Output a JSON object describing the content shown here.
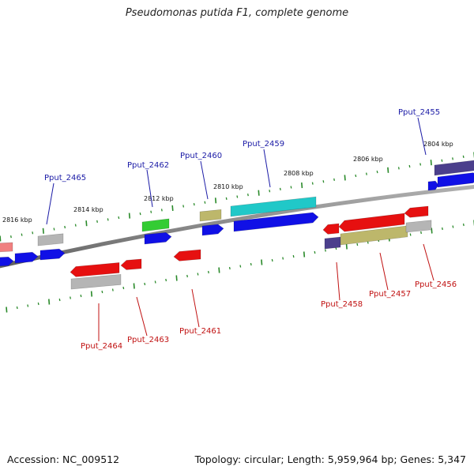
{
  "title": "Pseudomonas putida F1, complete genome",
  "accession": "Accession: NC_009512",
  "summary": "Topology: circular; Length: 5,959,964 bp; Genes: 5,347",
  "colors": {
    "backbone": "#8a8a8a",
    "tick": "#2a8a2a",
    "forward_cds": "#1010e6",
    "reverse_cds": "#e61010",
    "rna_silver": "#b5b5b5",
    "khaki": "#bdb76b",
    "teal": "#20c8c8",
    "green": "#33cc33",
    "slate": "#4b3f8c",
    "pink": "#f08080",
    "top_label": "#1a1aa6",
    "bottom_label": "#c01010"
  },
  "kbp_marks": [
    "2816 kbp",
    "2814 kbp",
    "2812 kbp",
    "2810 kbp",
    "2808 kbp",
    "2806 kbp",
    "2804 kbp"
  ],
  "top_labels": [
    "Pput_2465",
    "Pput_2462",
    "Pput_2460",
    "Pput_2459",
    "Pput_2455"
  ],
  "bottom_labels": [
    "Pput_2464",
    "Pput_2463",
    "Pput_2461",
    "Pput_2458",
    "Pput_2457",
    "Pput_2456"
  ]
}
